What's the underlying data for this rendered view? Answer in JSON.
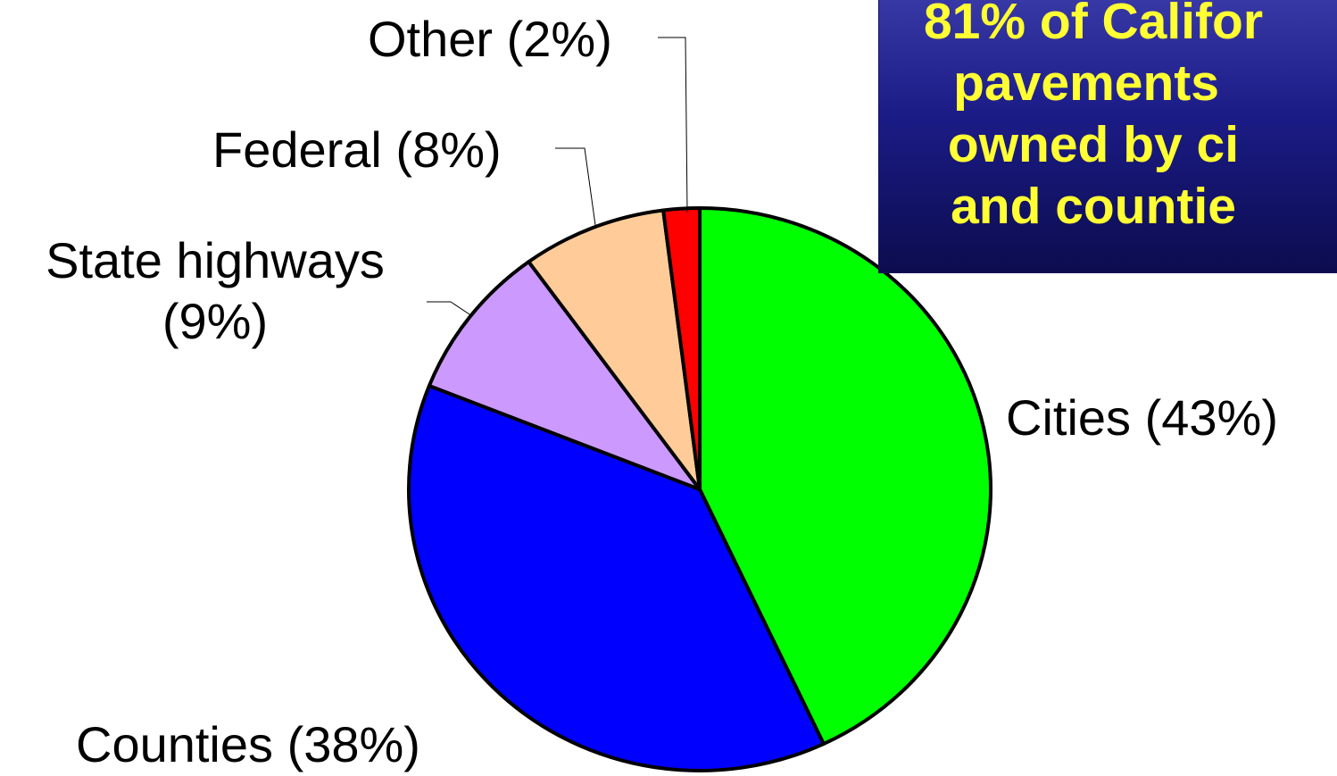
{
  "chart_data": {
    "type": "pie",
    "title": "",
    "start_angle_deg": 0,
    "direction": "clockwise",
    "slices": [
      {
        "label": "Cities (43%)",
        "value": 43,
        "color": "#00ff00"
      },
      {
        "label": "Counties (38%)",
        "value": 38,
        "color": "#0000ff"
      },
      {
        "label": "State highways\n(9%)",
        "value": 9,
        "color": "#cc99ff"
      },
      {
        "label": "Federal (8%)",
        "value": 8,
        "color": "#ffcc99"
      },
      {
        "label": "Other (2%)",
        "value": 2,
        "color": "#ff0000"
      }
    ],
    "annotation": "81% of Califor\npavements \nowned by ci\nand countie"
  }
}
